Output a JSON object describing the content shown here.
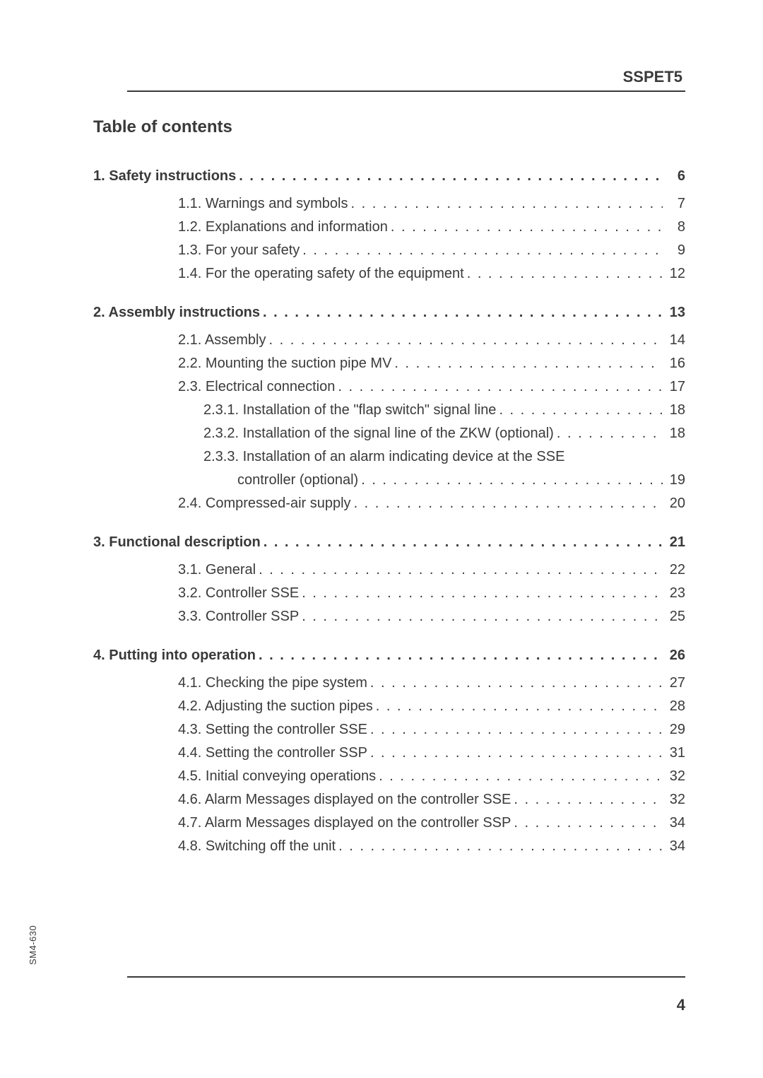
{
  "header": {
    "label": "SSPET5"
  },
  "title": "Table of contents",
  "sideCode": "SM4-630",
  "footer": {
    "pageNumber": "4"
  },
  "toc": [
    {
      "level": "section",
      "label": "1. Safety instructions",
      "page": "6"
    },
    {
      "level": "sub1",
      "label": "1.1. Warnings and symbols",
      "page": "7"
    },
    {
      "level": "sub1",
      "label": "1.2. Explanations and information",
      "page": "8"
    },
    {
      "level": "sub1",
      "label": "1.3. For your safety",
      "page": "9"
    },
    {
      "level": "sub1",
      "label": "1.4. For the operating safety of the equipment",
      "page": "12"
    },
    {
      "level": "section",
      "label": "2. Assembly instructions",
      "page": "13"
    },
    {
      "level": "sub1",
      "label": "2.1. Assembly",
      "page": "14"
    },
    {
      "level": "sub1",
      "label": "2.2. Mounting the suction pipe MV",
      "page": "16"
    },
    {
      "level": "sub1",
      "label": "2.3. Electrical connection",
      "page": "17"
    },
    {
      "level": "sub2",
      "label": "2.3.1. Installation of the \"flap switch\" signal line",
      "page": "18"
    },
    {
      "level": "sub2",
      "label": "2.3.2. Installation of the signal line of the ZKW (optional)",
      "page": "18"
    },
    {
      "level": "sub2-nopage",
      "label": "2.3.3. Installation of an alarm indicating device at the SSE"
    },
    {
      "level": "sub2-cont",
      "label": "controller (optional)",
      "page": "19"
    },
    {
      "level": "sub1",
      "label": "2.4. Compressed-air supply",
      "page": "20"
    },
    {
      "level": "section",
      "label": "3. Functional description",
      "page": "21"
    },
    {
      "level": "sub1",
      "label": "3.1. General",
      "page": "22"
    },
    {
      "level": "sub1",
      "label": "3.2. Controller SSE",
      "page": "23"
    },
    {
      "level": "sub1",
      "label": "3.3. Controller SSP",
      "page": "25"
    },
    {
      "level": "section",
      "label": "4. Putting into operation",
      "page": "26"
    },
    {
      "level": "sub1",
      "label": "4.1. Checking the pipe system",
      "page": "27"
    },
    {
      "level": "sub1",
      "label": "4.2. Adjusting the suction pipes",
      "page": "28"
    },
    {
      "level": "sub1",
      "label": "4.3. Setting the controller SSE",
      "page": "29"
    },
    {
      "level": "sub1",
      "label": "4.4. Setting the controller SSP",
      "page": "31"
    },
    {
      "level": "sub1",
      "label": "4.5. Initial conveying operations",
      "page": "32"
    },
    {
      "level": "sub1",
      "label": "4.6. Alarm Messages displayed on the controller SSE",
      "page": "32"
    },
    {
      "level": "sub1",
      "label": "4.7. Alarm Messages displayed on the controller SSP",
      "page": "34"
    },
    {
      "level": "sub1",
      "label": "4.8. Switching off the unit",
      "page": "34"
    }
  ]
}
